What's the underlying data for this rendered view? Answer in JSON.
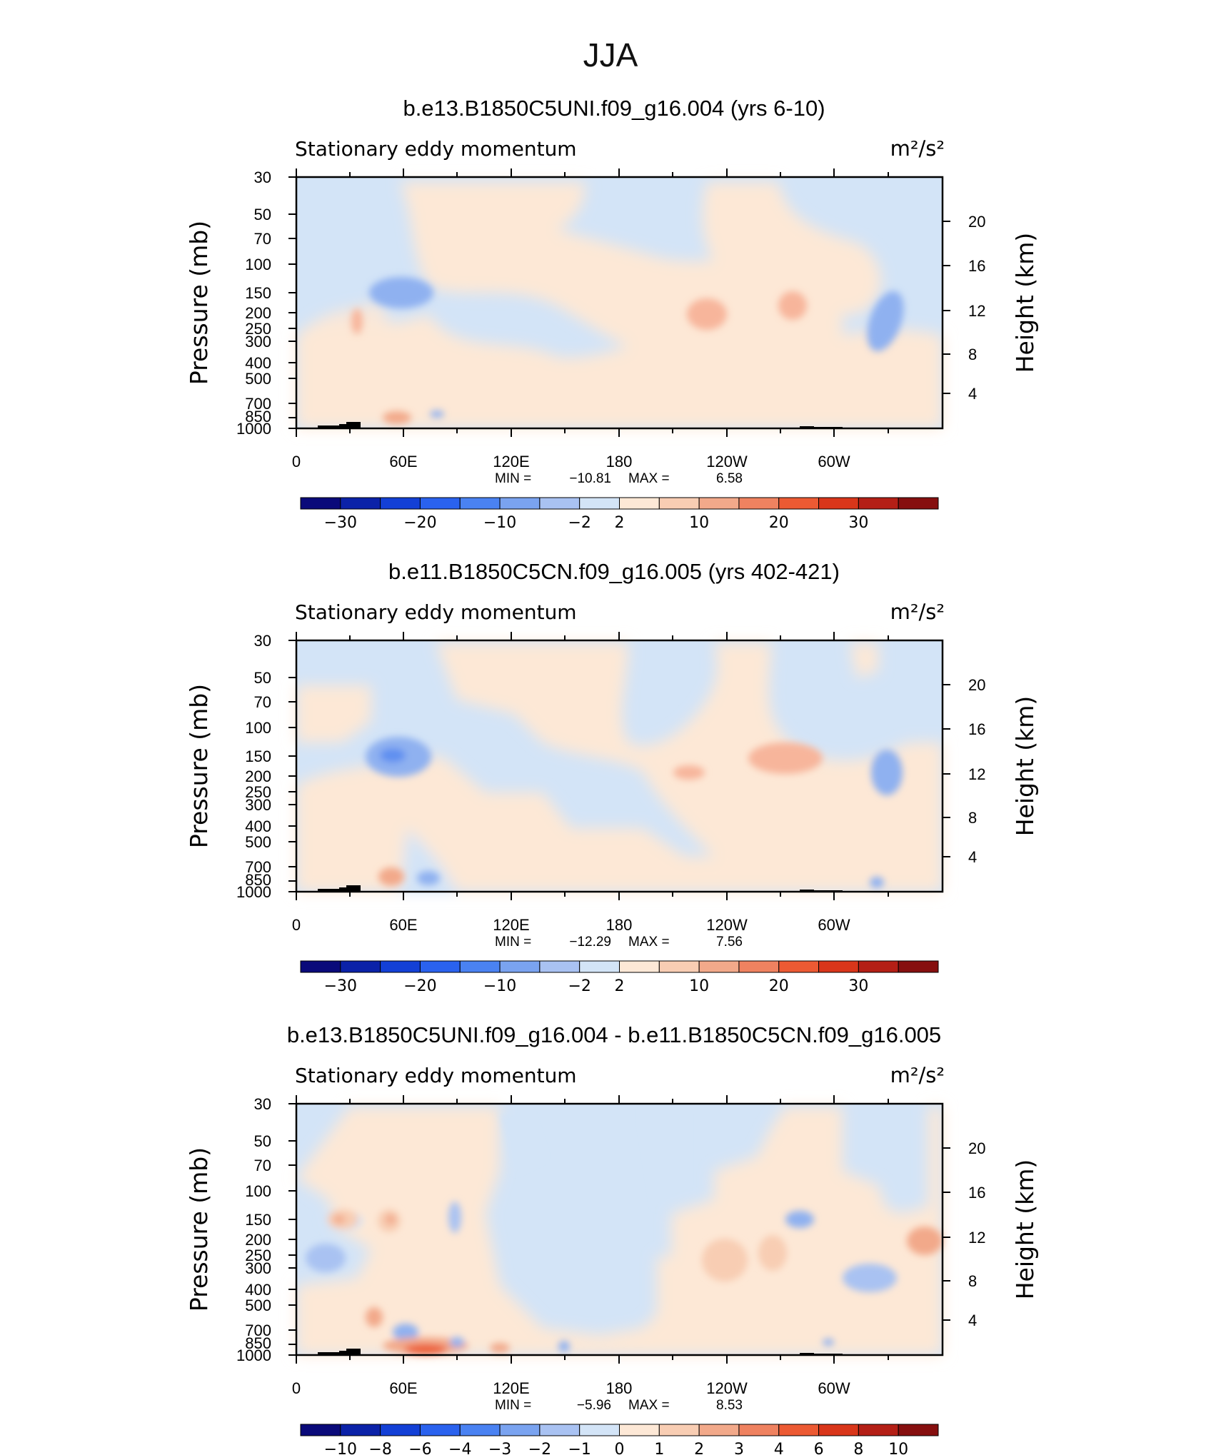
{
  "page_title": "JJA",
  "colorbar_main": {
    "colors": [
      "#0a0a7a",
      "#0b22a8",
      "#1340d6",
      "#2a62ee",
      "#4a82f2",
      "#7aa3f0",
      "#a9c2f2",
      "#d3e4f7",
      "#fde8d6",
      "#f8cdb3",
      "#f2a98a",
      "#ef8260",
      "#ec5a33",
      "#d9361a",
      "#b41f16",
      "#860f0f"
    ],
    "labels": [
      "-30",
      "-20",
      "-10",
      "-2",
      "2",
      "10",
      "20",
      "30"
    ]
  },
  "colorbar_diff": {
    "colors": [
      "#0a0a7a",
      "#0b22a8",
      "#1340d6",
      "#2a62ee",
      "#4a82f2",
      "#7aa3f0",
      "#a9c2f2",
      "#d3e4f7",
      "#fde8d6",
      "#f8cdb3",
      "#f2a98a",
      "#ef8260",
      "#ec5a33",
      "#d9361a",
      "#b41f16",
      "#860f0f"
    ],
    "labels": [
      "-10",
      "-8",
      "-6",
      "-4",
      "-3",
      "-2",
      "-1",
      "0",
      "1",
      "2",
      "3",
      "4",
      "6",
      "8",
      "10"
    ]
  },
  "chart_data": [
    {
      "type": "heatmap",
      "title": "b.e13.B1850C5UNI.f09_g16.004 (yrs 6-10)",
      "subtitle_left": "Stationary eddy momentum",
      "units": "m²/s²",
      "ylabel": "Pressure (mb)",
      "ylabel_right": "Height (km)",
      "x_ticks": [
        "0",
        "60E",
        "120E",
        "180",
        "120W",
        "60W"
      ],
      "y_ticks": [
        "30",
        "50",
        "70",
        "100",
        "150",
        "200",
        "250",
        "300",
        "400",
        "500",
        "700",
        "850",
        "1000"
      ],
      "y_right_ticks": [
        "20",
        "16",
        "12",
        "8",
        "4"
      ],
      "min_label": "MIN =",
      "min_value": "−10.81",
      "max_label": "MAX =",
      "max_value": "6.58",
      "min": -10.81,
      "max": 6.58
    },
    {
      "type": "heatmap",
      "title": "b.e11.B1850C5CN.f09_g16.005 (yrs 402-421)",
      "subtitle_left": "Stationary eddy momentum",
      "units": "m²/s²",
      "ylabel": "Pressure (mb)",
      "ylabel_right": "Height (km)",
      "x_ticks": [
        "0",
        "60E",
        "120E",
        "180",
        "120W",
        "60W"
      ],
      "y_ticks": [
        "30",
        "50",
        "70",
        "100",
        "150",
        "200",
        "250",
        "300",
        "400",
        "500",
        "700",
        "850",
        "1000"
      ],
      "y_right_ticks": [
        "20",
        "16",
        "12",
        "8",
        "4"
      ],
      "min_label": "MIN =",
      "min_value": "−12.29",
      "max_label": "MAX =",
      "max_value": "7.56",
      "min": -12.29,
      "max": 7.56
    },
    {
      "type": "heatmap",
      "title": "b.e13.B1850C5UNI.f09_g16.004 - b.e11.B1850C5CN.f09_g16.005",
      "subtitle_left": "Stationary eddy momentum",
      "units": "m²/s²",
      "ylabel": "Pressure (mb)",
      "ylabel_right": "Height (km)",
      "x_ticks": [
        "0",
        "60E",
        "120E",
        "180",
        "120W",
        "60W"
      ],
      "y_ticks": [
        "30",
        "50",
        "70",
        "100",
        "150",
        "200",
        "250",
        "300",
        "400",
        "500",
        "700",
        "850",
        "1000"
      ],
      "y_right_ticks": [
        "20",
        "16",
        "12",
        "8",
        "4"
      ],
      "min_label": "MIN =",
      "min_value": "−5.96",
      "max_label": "MAX =",
      "max_value": "8.53",
      "min": -5.96,
      "max": 8.53
    }
  ]
}
